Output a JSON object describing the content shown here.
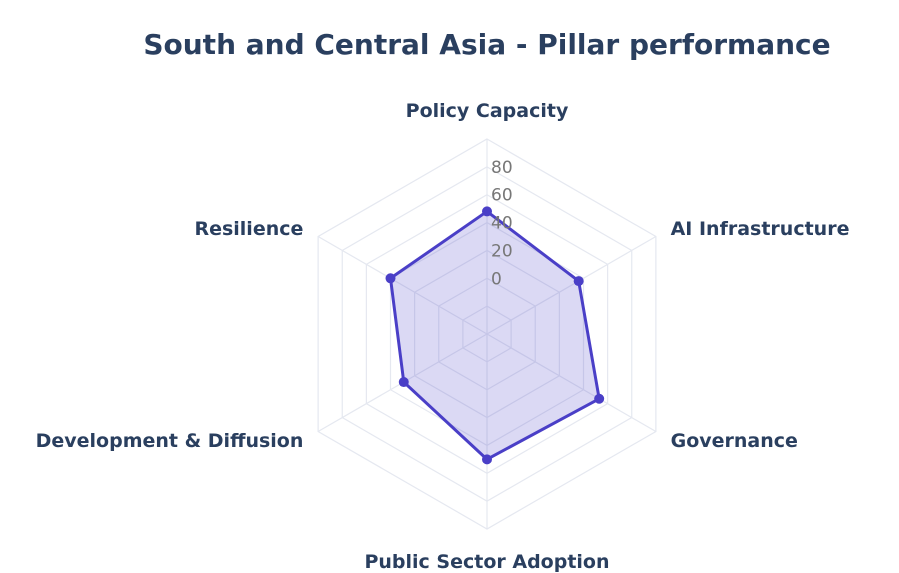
{
  "chart_data": {
    "type": "radar",
    "title": "South and Central Asia - Pillar performance",
    "axes": [
      "Policy Capacity",
      "AI Infrastructure",
      "Governance",
      "Public Sector Adoption",
      "Development & Diffusion",
      "Resilience"
    ],
    "series": [
      {
        "values": [
          48,
          36,
          53,
          50,
          29,
          40
        ]
      }
    ],
    "radial_range": [
      -40,
      100
    ],
    "radial_ticks": [
      0,
      20,
      40,
      60,
      80
    ],
    "grid": true,
    "colors": {
      "line": "#4a3fc7",
      "fill": "#4a3fc7",
      "grid": "#e5e8f0",
      "text": "#2a3f5f",
      "tick": "#777777"
    }
  }
}
